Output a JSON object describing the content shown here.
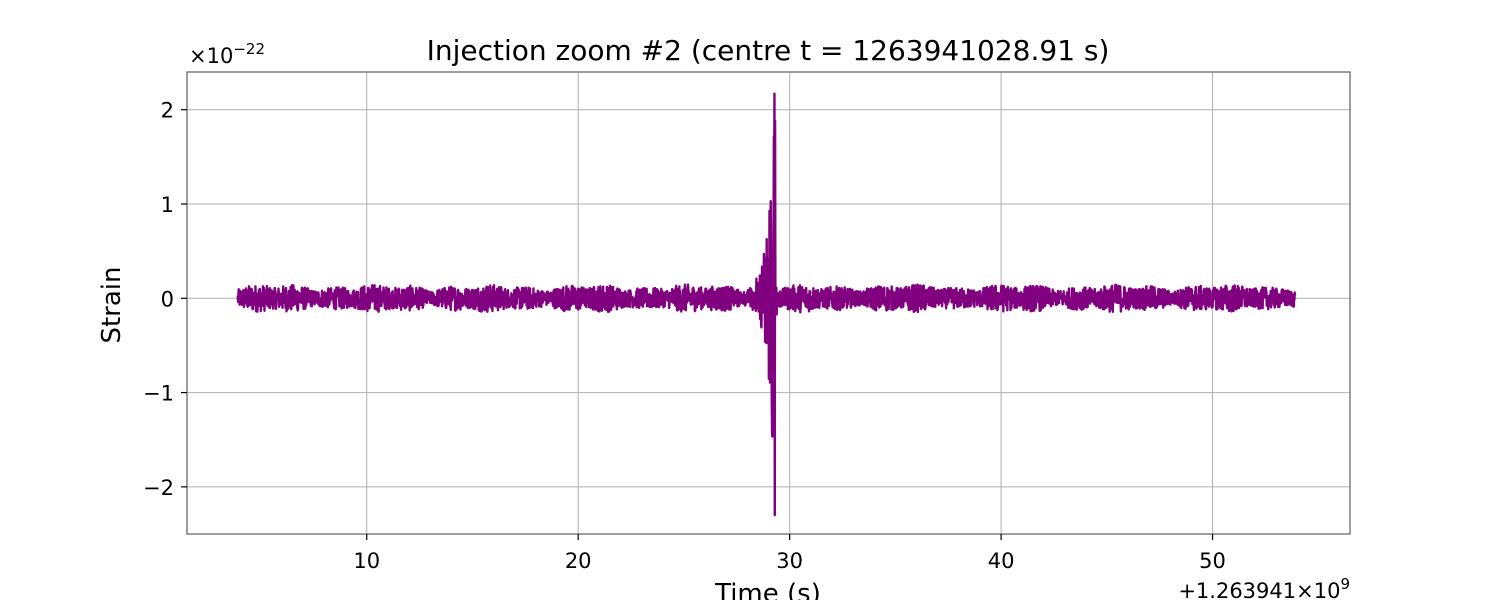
{
  "chart_data": {
    "type": "line",
    "title": "Injection zoom #2  (centre t = 1263941028.91 s)",
    "xlabel": "Time (s)",
    "ylabel": "Strain",
    "x_offset_text": "+1.263941×10",
    "x_offset_exp": "9",
    "y_scale_text": "×10",
    "y_scale_exp": "−22",
    "xlim": [
      1263941001.5,
      1263941056.5
    ],
    "ylim": [
      -2.5e-22,
      2.4e-22
    ],
    "xticks": [
      {
        "value": 1263941010,
        "label": "10"
      },
      {
        "value": 1263941020,
        "label": "20"
      },
      {
        "value": 1263941030,
        "label": "30"
      },
      {
        "value": 1263941040,
        "label": "40"
      },
      {
        "value": 1263941050,
        "label": "50"
      }
    ],
    "yticks": [
      {
        "value": 2e-22,
        "label": "2"
      },
      {
        "value": 1e-22,
        "label": "1"
      },
      {
        "value": 0,
        "label": "0"
      },
      {
        "value": -1e-22,
        "label": "−1"
      },
      {
        "value": -2e-22,
        "label": "−2"
      }
    ],
    "grid": true,
    "series": [
      {
        "color": "#800080",
        "x_start": 1263941003.9,
        "x_end": 1263941053.9,
        "noise_amplitude": 1.2e-23,
        "chirp_peak_time": 1263941029.3,
        "chirp_peak_max": 2.17e-22,
        "chirp_peak_min": -2.3e-22
      }
    ]
  }
}
